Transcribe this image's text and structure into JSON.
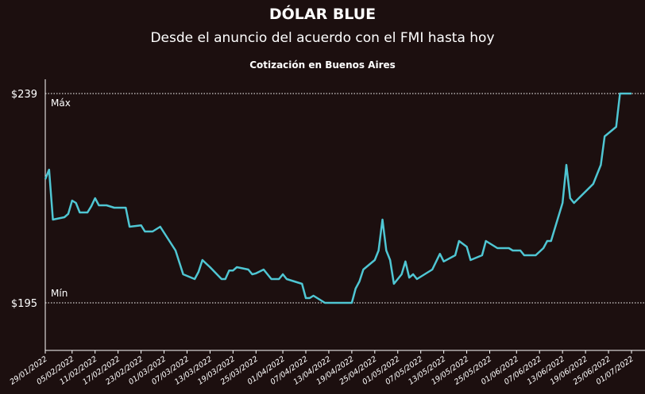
{
  "chart_data": {
    "type": "line",
    "title": "DÓLAR BLUE",
    "subtitle": "Desde el anuncio del acuerdo con el FMI hasta hoy",
    "caption": "Cotización en Buenos Aires",
    "annotations": [
      "Máx",
      "Mín"
    ],
    "x": [
      "2022-01-29",
      "2022-01-30",
      "2022-01-31",
      "2022-02-03",
      "2022-02-04",
      "2022-02-05",
      "2022-02-06",
      "2022-02-07",
      "2022-02-09",
      "2022-02-10",
      "2022-02-11",
      "2022-02-12",
      "2022-02-14",
      "2022-02-16",
      "2022-02-19",
      "2022-02-20",
      "2022-02-23",
      "2022-02-24",
      "2022-02-26",
      "2022-02-28",
      "2022-03-04",
      "2022-03-06",
      "2022-03-09",
      "2022-03-10",
      "2022-03-11",
      "2022-03-13",
      "2022-03-16",
      "2022-03-17",
      "2022-03-18",
      "2022-03-19",
      "2022-03-20",
      "2022-03-23",
      "2022-03-24",
      "2022-03-25",
      "2022-03-27",
      "2022-03-29",
      "2022-03-31",
      "2022-04-01",
      "2022-04-02",
      "2022-04-04",
      "2022-04-06",
      "2022-04-07",
      "2022-04-08",
      "2022-04-09",
      "2022-04-12",
      "2022-04-19",
      "2022-04-20",
      "2022-04-21",
      "2022-04-22",
      "2022-04-25",
      "2022-04-26",
      "2022-04-27",
      "2022-04-28",
      "2022-04-29",
      "2022-04-30",
      "2022-05-02",
      "2022-05-03",
      "2022-05-04",
      "2022-05-05",
      "2022-05-06",
      "2022-05-10",
      "2022-05-12",
      "2022-05-13",
      "2022-05-16",
      "2022-05-17",
      "2022-05-19",
      "2022-05-20",
      "2022-05-23",
      "2022-05-24",
      "2022-05-27",
      "2022-05-30",
      "2022-05-31",
      "2022-06-02",
      "2022-06-03",
      "2022-06-06",
      "2022-06-08",
      "2022-06-09",
      "2022-06-10",
      "2022-06-13",
      "2022-06-14",
      "2022-06-15",
      "2022-06-16",
      "2022-06-21",
      "2022-06-23",
      "2022-06-24",
      "2022-06-27",
      "2022-06-28",
      "2022-07-01"
    ],
    "series": [
      {
        "name": "Dólar blue",
        "color": "#4fc6d3",
        "values": [
          221,
          223,
          212.5,
          213,
          213.7,
          216.5,
          216,
          214,
          214,
          215.3,
          217,
          215.5,
          215.5,
          215,
          215,
          211,
          211.3,
          210,
          210,
          211,
          206,
          201,
          200,
          201.5,
          204,
          202.5,
          200,
          200,
          201.8,
          201.8,
          202.5,
          202,
          201,
          201.2,
          202,
          200,
          200,
          201,
          200,
          199.5,
          199,
          196,
          196,
          196.5,
          195,
          195,
          198,
          199.5,
          202,
          204,
          206,
          212.5,
          206,
          204,
          199,
          201,
          203.7,
          200.3,
          201,
          200,
          202,
          205.3,
          203.7,
          205,
          208,
          206.8,
          204,
          205,
          208,
          206.5,
          206.5,
          206,
          206,
          205,
          205,
          206.5,
          208,
          208,
          216,
          224,
          217,
          216,
          220,
          224,
          230,
          232,
          239,
          239
        ]
      }
    ],
    "xlim": [
      "2022-01-29",
      "2022-07-01"
    ],
    "xticks": [
      {
        "value": "2022-01-29",
        "label": "29/01/2022"
      },
      {
        "value": "2022-02-05",
        "label": "05/02/2022"
      },
      {
        "value": "2022-02-11",
        "label": "11/02/2022"
      },
      {
        "value": "2022-02-17",
        "label": "17/02/2022"
      },
      {
        "value": "2022-02-23",
        "label": "23/02/2022"
      },
      {
        "value": "2022-03-01",
        "label": "01/03/2022"
      },
      {
        "value": "2022-03-07",
        "label": "07/03/2022"
      },
      {
        "value": "2022-03-13",
        "label": "13/03/2022"
      },
      {
        "value": "2022-03-19",
        "label": "19/03/2022"
      },
      {
        "value": "2022-03-25",
        "label": "25/03/2022"
      },
      {
        "value": "2022-04-01",
        "label": "01/04/2022"
      },
      {
        "value": "2022-04-07",
        "label": "07/04/2022"
      },
      {
        "value": "2022-04-13",
        "label": "13/04/2022"
      },
      {
        "value": "2022-04-19",
        "label": "19/04/2022"
      },
      {
        "value": "2022-04-25",
        "label": "25/04/2022"
      },
      {
        "value": "2022-05-01",
        "label": "01/05/2022"
      },
      {
        "value": "2022-05-07",
        "label": "07/05/2022"
      },
      {
        "value": "2022-05-13",
        "label": "13/05/2022"
      },
      {
        "value": "2022-05-19",
        "label": "19/05/2022"
      },
      {
        "value": "2022-05-25",
        "label": "25/05/2022"
      },
      {
        "value": "2022-06-01",
        "label": "01/06/2022"
      },
      {
        "value": "2022-06-07",
        "label": "07/06/2022"
      },
      {
        "value": "2022-06-13",
        "label": "13/06/2022"
      },
      {
        "value": "2022-06-19",
        "label": "19/06/2022"
      },
      {
        "value": "2022-06-25",
        "label": "25/06/2022"
      },
      {
        "value": "2022-07-01",
        "label": "01/07/2022"
      }
    ],
    "ylim": [
      185,
      242
    ],
    "yticks": [
      {
        "value": 195,
        "label": "$195"
      },
      {
        "value": 239,
        "label": "$239"
      }
    ],
    "grid": true
  }
}
